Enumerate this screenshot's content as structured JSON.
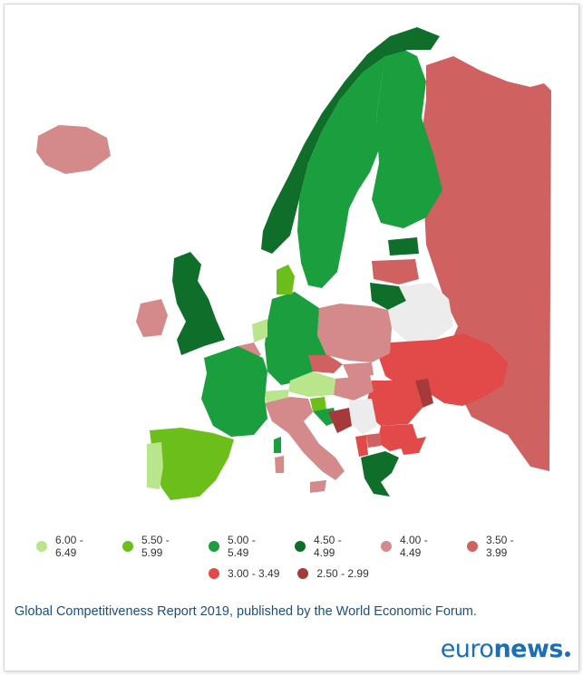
{
  "legend": [
    {
      "range": "6.00 - 6.49",
      "color": "#b9e58d"
    },
    {
      "range": "5.50 - 5.99",
      "color": "#6cbf1a"
    },
    {
      "range": "5.00 - 5.49",
      "color": "#1b9e3e"
    },
    {
      "range": "4.50 - 4.99",
      "color": "#0f6e2a"
    },
    {
      "range": "4.00 - 4.49",
      "color": "#d48a8a"
    },
    {
      "range": "3.50 - 3.99",
      "color": "#cf6161"
    },
    {
      "range": "3.00 - 3.49",
      "color": "#e24a4a"
    },
    {
      "range": "2.50 - 2.99",
      "color": "#a63a3a"
    }
  ],
  "caption": "Global Competitiveness Report 2019, published by the World Economic Forum.",
  "brand": {
    "light": "euro",
    "bold": "news"
  },
  "colors": {
    "caption": "#1d4f7a",
    "brand": "#1a6fb5",
    "no_data": "#ececec"
  }
}
